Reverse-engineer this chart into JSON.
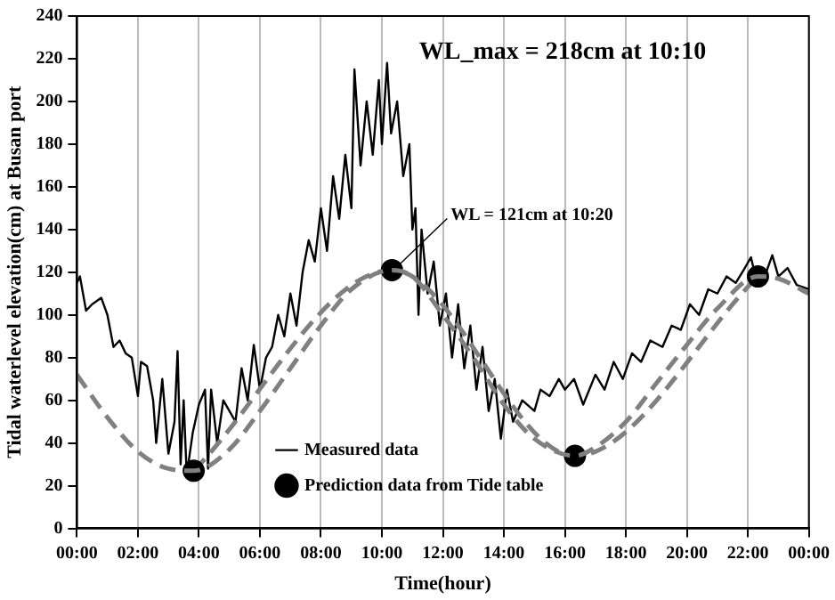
{
  "chart_data": {
    "type": "line",
    "xlabel": "Time(hour)",
    "ylabel": "Tidal waterlevel elevation(cm) at Busan port",
    "xlim": [
      0,
      24
    ],
    "xticks": [
      {
        "value": 0,
        "label": "00:00"
      },
      {
        "value": 2,
        "label": "02:00"
      },
      {
        "value": 4,
        "label": "04:00"
      },
      {
        "value": 6,
        "label": "06:00"
      },
      {
        "value": 8,
        "label": "08:00"
      },
      {
        "value": 10,
        "label": "10:00"
      },
      {
        "value": 12,
        "label": "12:00"
      },
      {
        "value": 14,
        "label": "14:00"
      },
      {
        "value": 16,
        "label": "16:00"
      },
      {
        "value": 18,
        "label": "18:00"
      },
      {
        "value": 20,
        "label": "20:00"
      },
      {
        "value": 22,
        "label": "22:00"
      },
      {
        "value": 24,
        "label": "00:00"
      }
    ],
    "ylim": [
      0,
      240
    ],
    "yticks": [
      0,
      20,
      40,
      60,
      80,
      100,
      120,
      140,
      160,
      180,
      200,
      220,
      240
    ],
    "grid": "x",
    "legend": "bottom",
    "series": [
      {
        "name": "Measured data",
        "type": "line",
        "color": "#000000",
        "marker": "none",
        "line_style": "solid",
        "x": [
          0,
          0.1,
          0.3,
          0.5,
          0.8,
          1.0,
          1.2,
          1.4,
          1.6,
          1.8,
          2.0,
          2.1,
          2.3,
          2.5,
          2.6,
          2.8,
          3.0,
          3.2,
          3.3,
          3.4,
          3.5,
          3.6,
          3.8,
          4.0,
          4.2,
          4.3,
          4.4,
          4.6,
          4.8,
          5.0,
          5.2,
          5.4,
          5.6,
          5.8,
          6.0,
          6.2,
          6.4,
          6.6,
          6.8,
          7.0,
          7.2,
          7.4,
          7.6,
          7.8,
          8.0,
          8.2,
          8.4,
          8.6,
          8.8,
          9.0,
          9.1,
          9.3,
          9.5,
          9.7,
          9.9,
          10.0,
          10.17,
          10.3,
          10.5,
          10.7,
          10.9,
          11.0,
          11.1,
          11.2,
          11.3,
          11.5,
          11.7,
          11.9,
          12.1,
          12.3,
          12.5,
          12.7,
          12.9,
          13.1,
          13.3,
          13.5,
          13.7,
          13.9,
          14.1,
          14.3,
          14.6,
          15.0,
          15.2,
          15.5,
          15.8,
          16.0,
          16.3,
          16.6,
          17.0,
          17.3,
          17.6,
          17.9,
          18.2,
          18.5,
          18.8,
          19.2,
          19.5,
          19.8,
          20.1,
          20.4,
          20.7,
          21.0,
          21.3,
          21.6,
          21.9,
          22.1,
          22.3,
          22.6,
          22.8,
          23.0,
          23.3,
          23.6,
          24
        ],
        "values": [
          115,
          118,
          102,
          105,
          108,
          100,
          85,
          88,
          82,
          80,
          62,
          78,
          76,
          60,
          40,
          70,
          35,
          50,
          83,
          30,
          60,
          25,
          45,
          58,
          65,
          28,
          65,
          40,
          60,
          55,
          50,
          75,
          60,
          86,
          65,
          80,
          85,
          100,
          90,
          110,
          95,
          120,
          135,
          125,
          150,
          130,
          165,
          145,
          175,
          150,
          215,
          170,
          200,
          175,
          210,
          180,
          218,
          185,
          200,
          165,
          180,
          140,
          150,
          100,
          140,
          110,
          125,
          95,
          110,
          80,
          105,
          75,
          95,
          65,
          85,
          55,
          70,
          42,
          65,
          50,
          60,
          55,
          65,
          62,
          70,
          65,
          70,
          58,
          72,
          65,
          78,
          70,
          82,
          78,
          88,
          85,
          95,
          93,
          105,
          100,
          112,
          110,
          118,
          115,
          122,
          127,
          115,
          120,
          128,
          118,
          122,
          114,
          112
        ]
      },
      {
        "name": "Prediction data from Tide table",
        "type": "line",
        "color": "#808080",
        "marker": "circle",
        "line_style": "dashed",
        "x": [
          3.83,
          10.33,
          16.33,
          22.33
        ],
        "values": [
          27,
          121,
          34,
          118
        ]
      },
      {
        "type": "line",
        "color": "#808080",
        "marker": "none",
        "line_style": "dashed",
        "x": [
          0,
          1,
          2,
          3,
          3.83,
          5,
          6,
          7,
          8,
          9,
          10.33,
          11,
          12,
          13,
          14,
          15,
          16.33,
          17,
          18,
          19,
          20,
          21,
          22.33,
          23,
          24
        ],
        "values": [
          72,
          52,
          36,
          28,
          27,
          37,
          55,
          75,
          95,
          112,
          121,
          118,
          100,
          80,
          58,
          42,
          34,
          38,
          50,
          68,
          86,
          103,
          118,
          117,
          110
        ]
      }
    ],
    "annotations": [
      {
        "text": "WL_max = 218cm at 10:10",
        "x": 10.17,
        "y": 218
      },
      {
        "text": "WL = 121cm at 10:20",
        "x": 10.33,
        "y": 121
      }
    ]
  }
}
